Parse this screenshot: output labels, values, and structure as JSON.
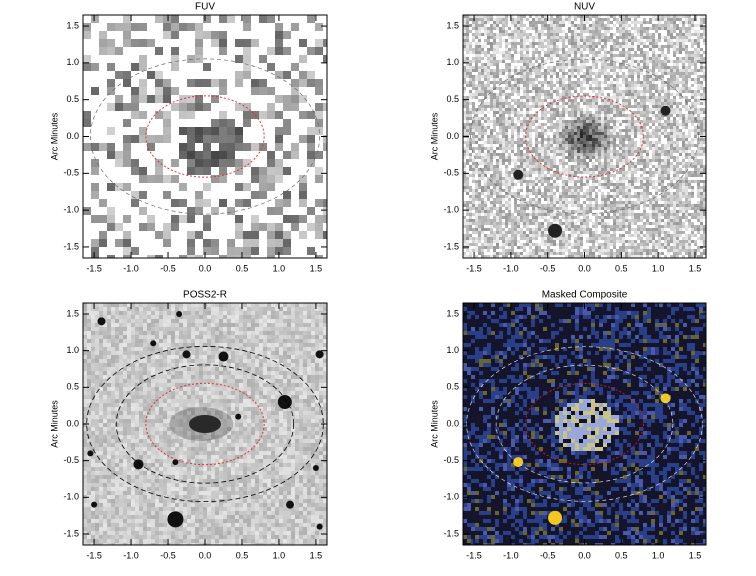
{
  "chart_data": [
    {
      "type": "image",
      "title": "FUV",
      "ylabel": "Arc Minutes",
      "xlim": [
        -1.65,
        1.65
      ],
      "ylim": [
        -1.65,
        1.65
      ],
      "xticks": [
        -1.5,
        {
          "value": -1,
          "label": "-1.0"
        },
        -0.5,
        {
          "value": 0,
          "label": "0.0"
        },
        0.5,
        {
          "value": 1,
          "label": "1.0"
        },
        1.5
      ],
      "yticks": [
        -1.5,
        {
          "value": -1,
          "label": "-1.0"
        },
        -0.5,
        {
          "value": 0,
          "label": "0.0"
        },
        0.5,
        {
          "value": 1,
          "label": "1.0"
        },
        1.5
      ]
    },
    {
      "type": "image",
      "title": "NUV",
      "ylabel": "Arc Minutes",
      "xlim": [
        -1.65,
        1.65
      ],
      "ylim": [
        -1.65,
        1.65
      ],
      "xticks": [
        -1.5,
        {
          "value": -1,
          "label": "-1.0"
        },
        -0.5,
        {
          "value": 0,
          "label": "0.0"
        },
        0.5,
        {
          "value": 1,
          "label": "1.0"
        },
        1.5
      ],
      "yticks": [
        -1.5,
        {
          "value": -1,
          "label": "-1.0"
        },
        -0.5,
        {
          "value": 0,
          "label": "0.0"
        },
        0.5,
        {
          "value": 1,
          "label": "1.0"
        },
        1.5
      ]
    },
    {
      "type": "image",
      "title": "POSS2-R",
      "ylabel": "Arc Minutes",
      "xlim": [
        -1.65,
        1.65
      ],
      "ylim": [
        -1.65,
        1.65
      ],
      "xticks": [
        -1.5,
        {
          "value": -1,
          "label": "-1.0"
        },
        -0.5,
        {
          "value": 0,
          "label": "0.0"
        },
        0.5,
        {
          "value": 1,
          "label": "1.0"
        },
        1.5
      ],
      "yticks": [
        -1.5,
        {
          "value": -1,
          "label": "-1.0"
        },
        -0.5,
        {
          "value": 0,
          "label": "0.0"
        },
        0.5,
        {
          "value": 1,
          "label": "1.0"
        },
        1.5
      ]
    },
    {
      "type": "image",
      "title": "Masked Composite",
      "ylabel": "Arc Minutes",
      "xlim": [
        -1.65,
        1.65
      ],
      "ylim": [
        -1.65,
        1.65
      ],
      "xticks": [
        -1.5,
        {
          "value": -1,
          "label": "-1.0"
        },
        -0.5,
        {
          "value": 0,
          "label": "0.0"
        },
        0.5,
        {
          "value": 1,
          "label": "1.0"
        },
        1.5
      ],
      "yticks": [
        -1.5,
        {
          "value": -1,
          "label": "-1.0"
        },
        -0.5,
        {
          "value": 0,
          "label": "0.0"
        },
        0.5,
        {
          "value": 1,
          "label": "1.0"
        },
        1.5
      ]
    }
  ]
}
